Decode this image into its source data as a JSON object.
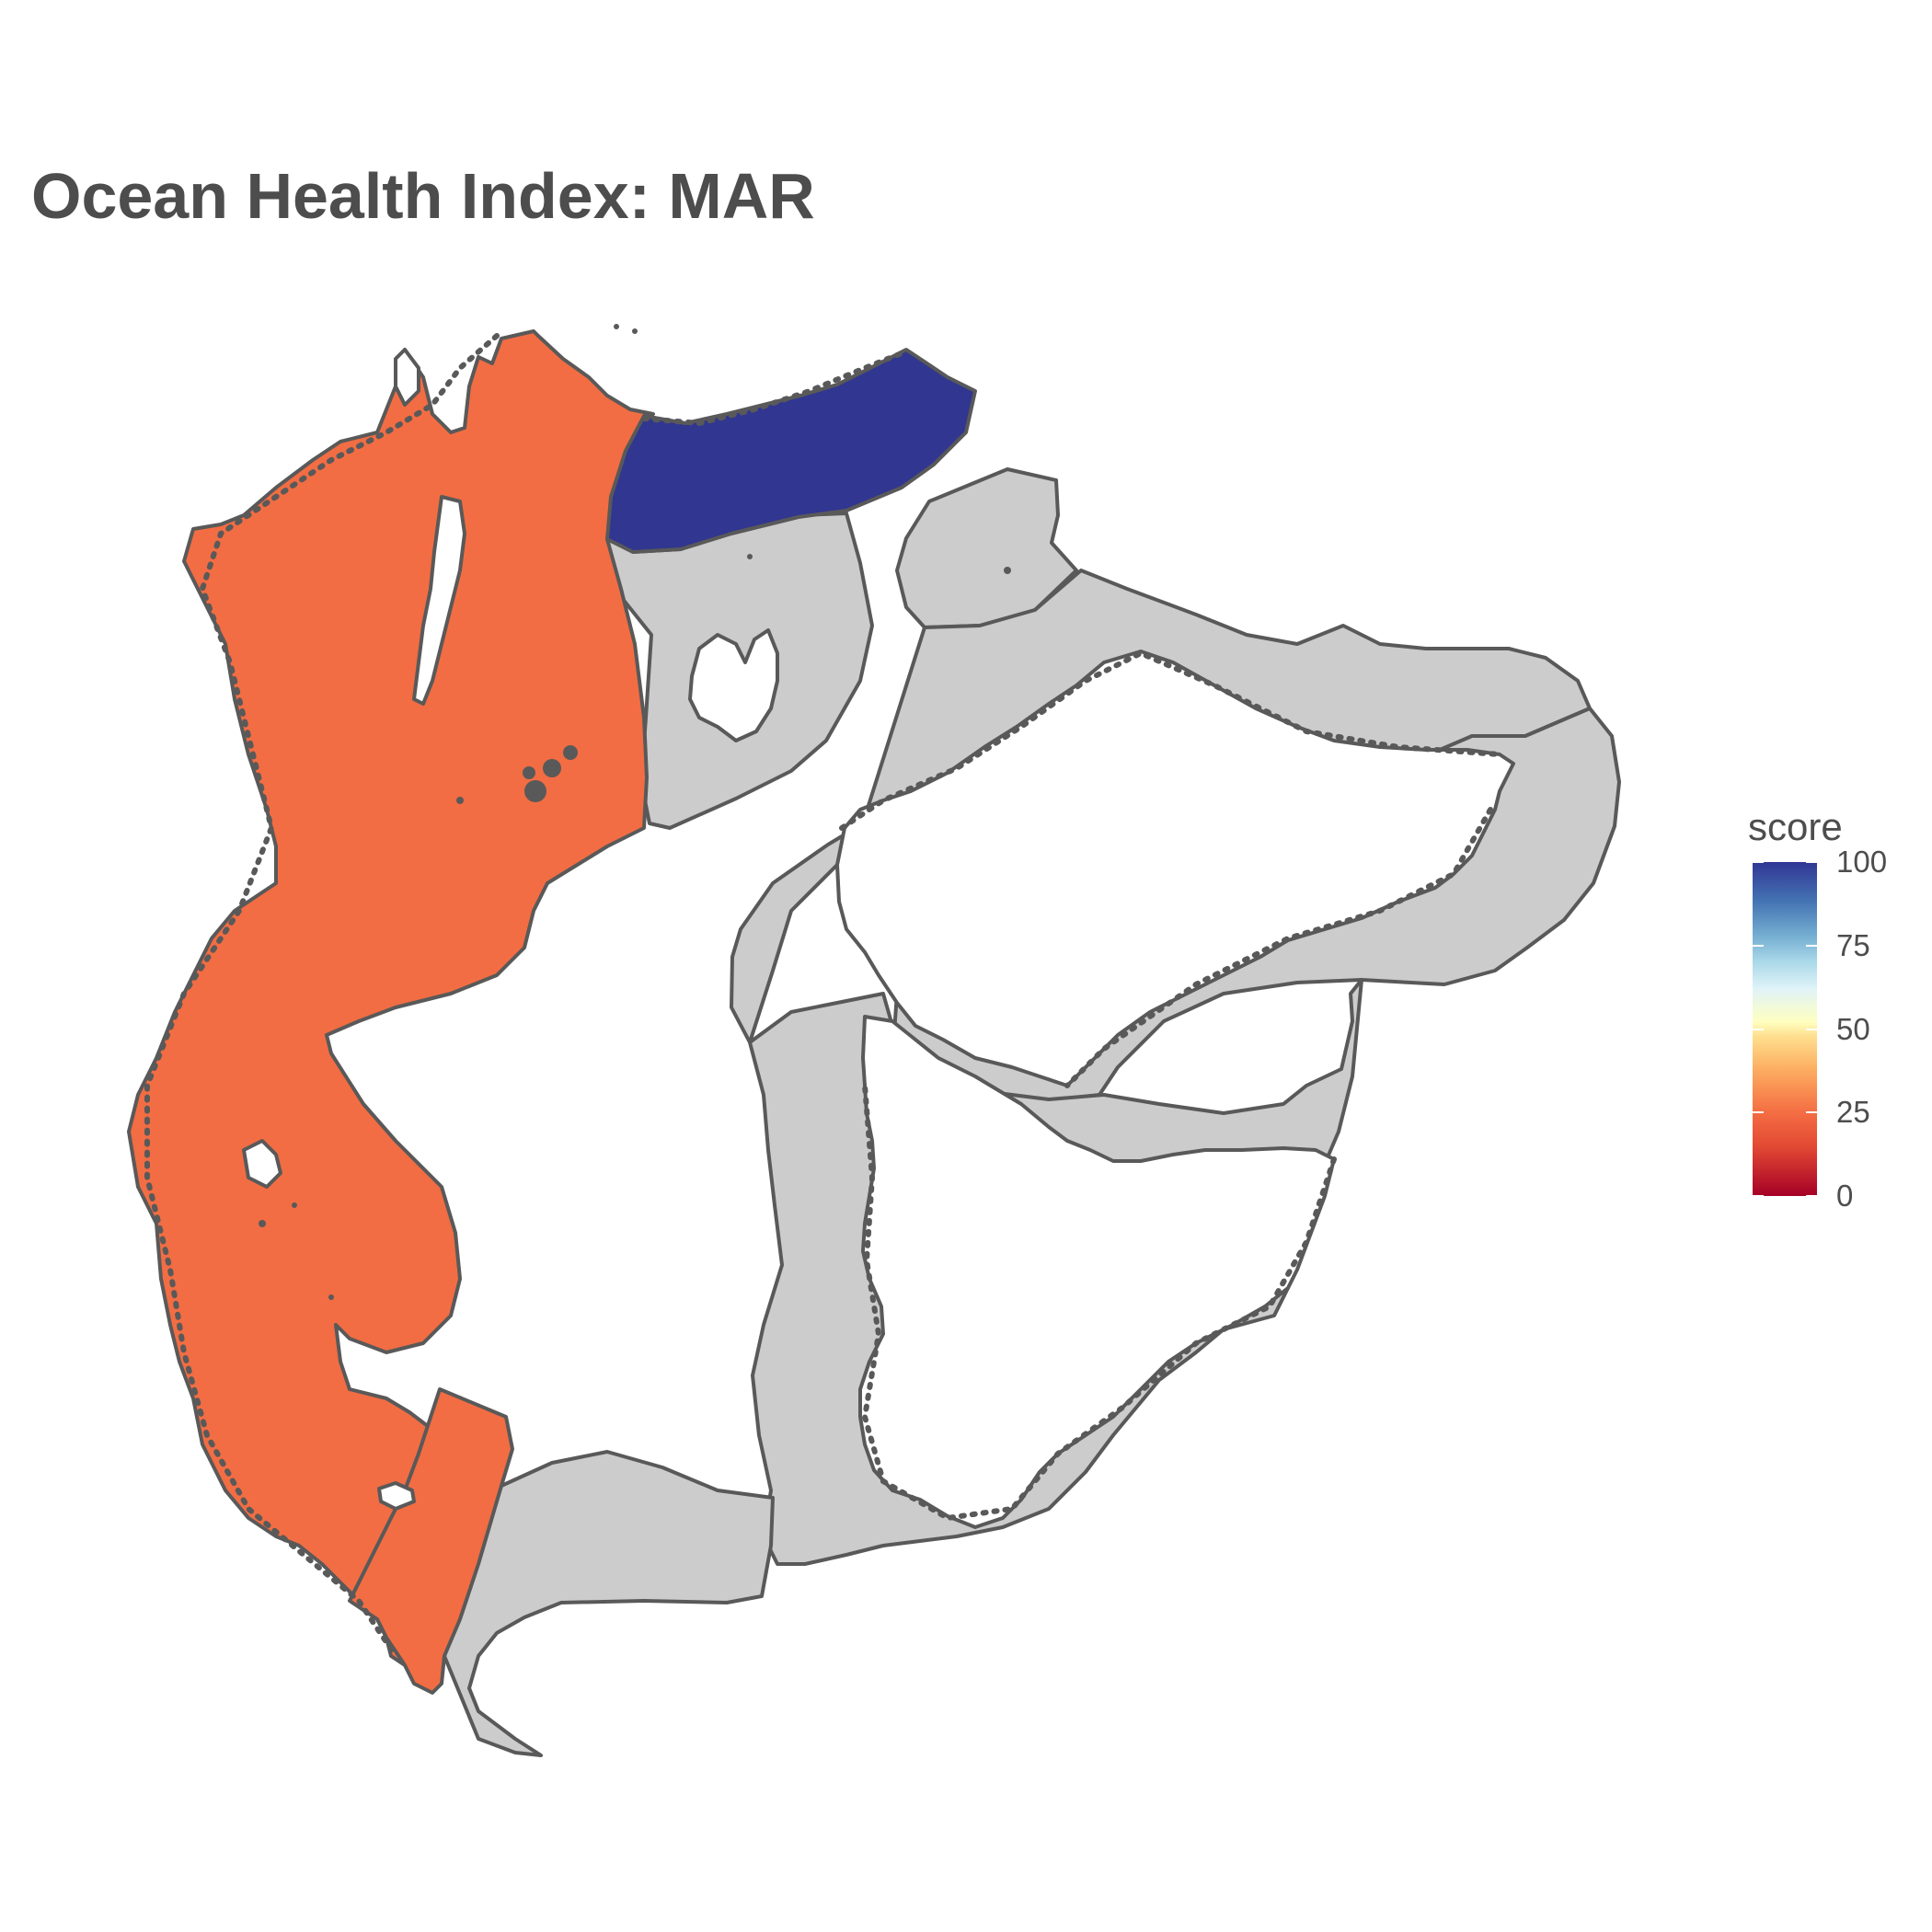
{
  "title": "Ocean Health Index: MAR",
  "legend": {
    "title": "score",
    "ticks": [
      "0",
      "25",
      "50",
      "75",
      "100"
    ],
    "min": 0,
    "max": 100,
    "palette": [
      "#a50026",
      "#f46d43",
      "#ffffbf",
      "#74add1",
      "#313695"
    ]
  },
  "colors": {
    "low_score_region": "#f26d43",
    "high_score_region": "#313690",
    "no_data_region": "#cccccc",
    "land": "#ffffff",
    "border": "#595959"
  }
}
